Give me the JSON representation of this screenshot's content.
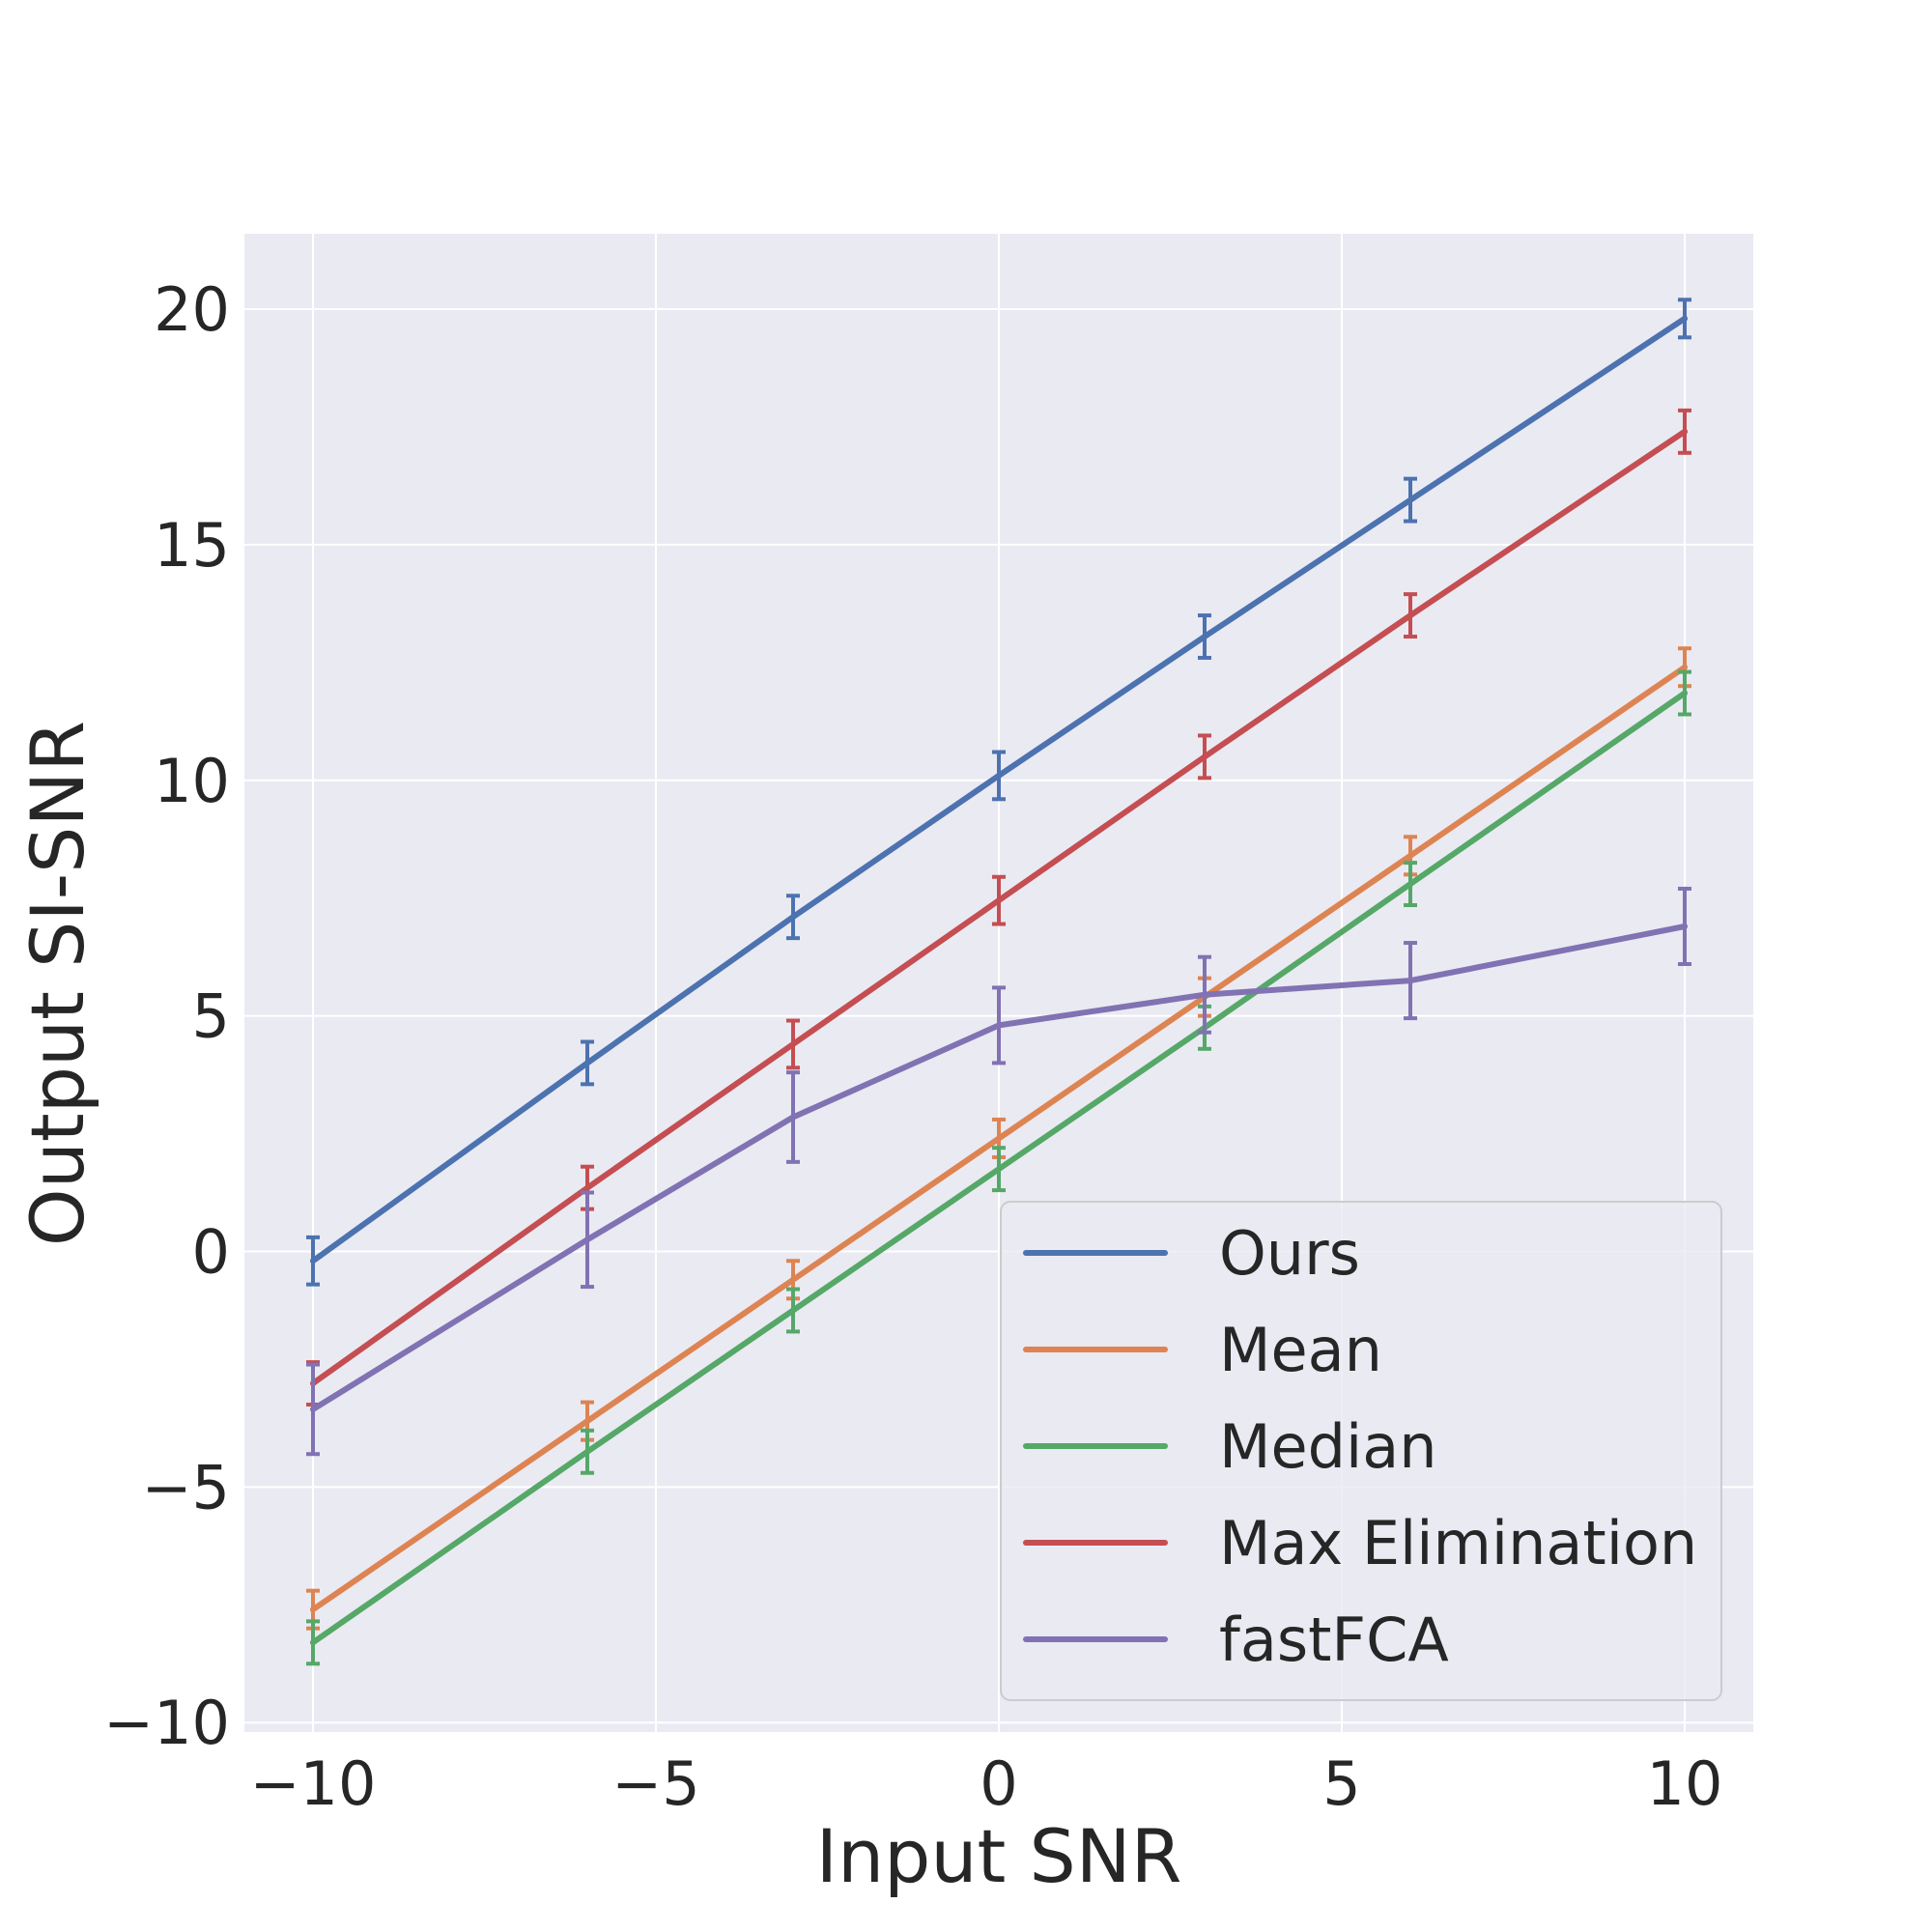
{
  "chart_data": {
    "type": "line",
    "title": "",
    "xlabel": "Input SNR",
    "ylabel": "Output SI-SNR",
    "x": [
      -10,
      -6,
      -3,
      0,
      3,
      6,
      10
    ],
    "xlim": [
      -11,
      11
    ],
    "ylim": [
      -10.2,
      21.6
    ],
    "xticks": [
      -10,
      -5,
      0,
      5,
      10
    ],
    "yticks": [
      -10,
      -5,
      0,
      5,
      10,
      15,
      20
    ],
    "xtick_labels": [
      "−10",
      "−5",
      "0",
      "5",
      "10"
    ],
    "ytick_labels": [
      "−10",
      "−5",
      "0",
      "5",
      "10",
      "15",
      "20"
    ],
    "grid": true,
    "legend_position": "bottom-right",
    "series": [
      {
        "name": "Ours",
        "color": "#4c72b0",
        "values": [
          -0.2,
          4.0,
          7.1,
          10.1,
          13.05,
          15.95,
          19.8
        ],
        "errors": [
          0.5,
          0.45,
          0.45,
          0.5,
          0.45,
          0.45,
          0.4
        ]
      },
      {
        "name": "Mean",
        "color": "#dd8452",
        "values": [
          -7.6,
          -3.6,
          -0.6,
          2.4,
          5.4,
          8.4,
          12.4
        ],
        "errors": [
          0.4,
          0.4,
          0.4,
          0.4,
          0.4,
          0.4,
          0.4
        ]
      },
      {
        "name": "Median",
        "color": "#55a868",
        "values": [
          -8.3,
          -4.25,
          -1.25,
          1.75,
          4.75,
          7.8,
          11.85
        ],
        "errors": [
          0.45,
          0.45,
          0.45,
          0.45,
          0.45,
          0.45,
          0.45
        ]
      },
      {
        "name": "Max Elimination",
        "color": "#c44e52",
        "values": [
          -2.8,
          1.35,
          4.4,
          7.45,
          10.5,
          13.5,
          17.4
        ],
        "errors": [
          0.45,
          0.45,
          0.5,
          0.5,
          0.45,
          0.45,
          0.45
        ]
      },
      {
        "name": "fastFCA",
        "color": "#8172b3",
        "values": [
          -3.35,
          0.25,
          2.85,
          4.8,
          5.45,
          5.75,
          6.9
        ],
        "errors": [
          0.95,
          1.0,
          0.95,
          0.8,
          0.8,
          0.8,
          0.8
        ]
      }
    ]
  }
}
